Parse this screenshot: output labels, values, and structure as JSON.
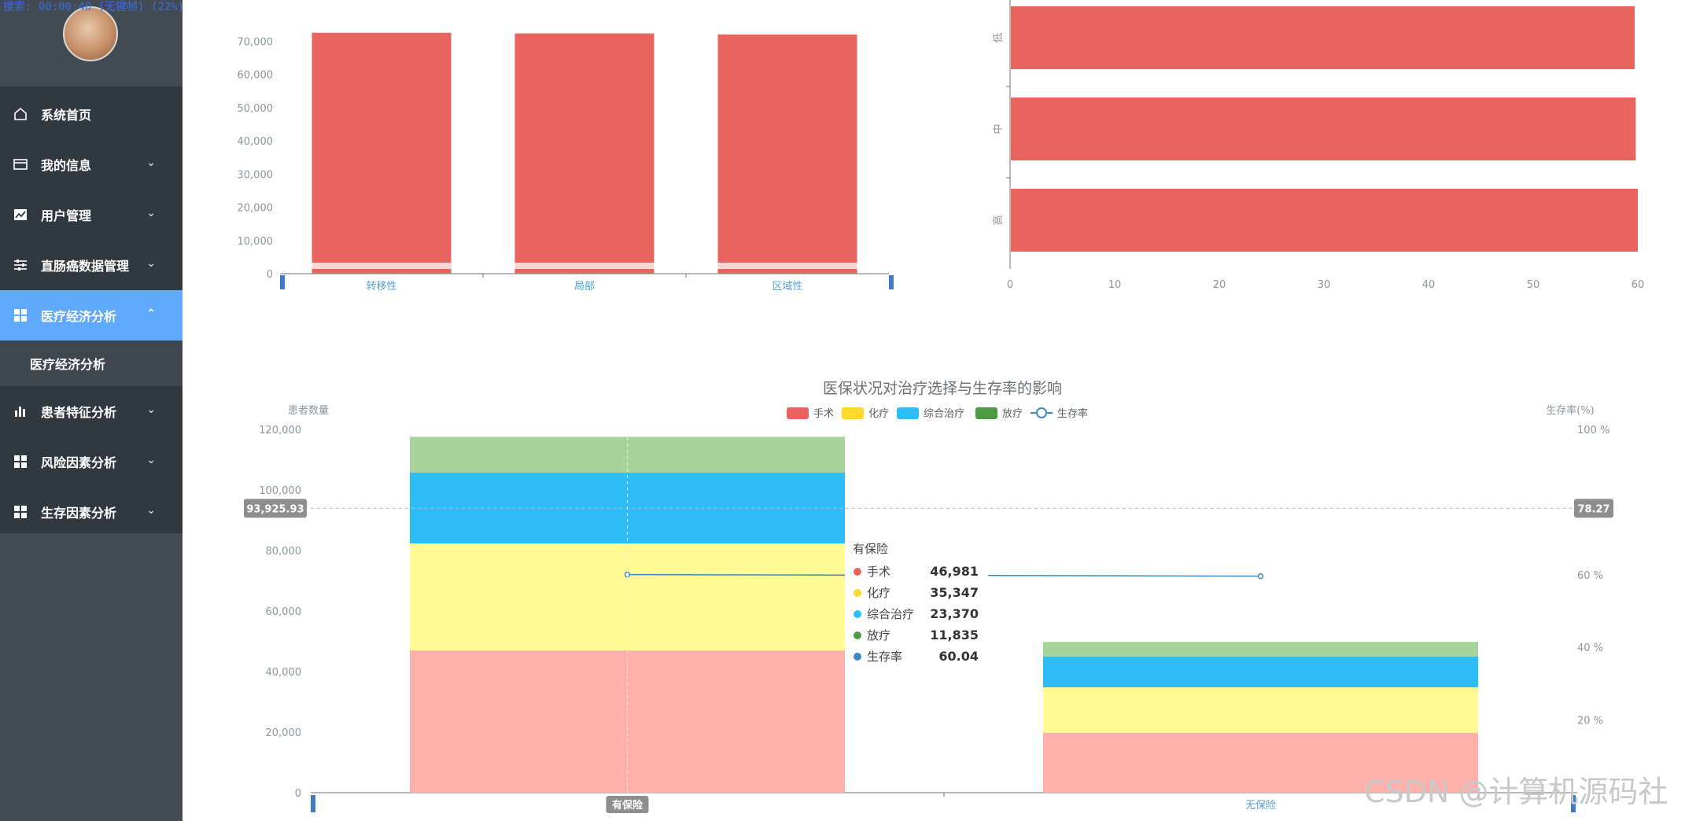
{
  "app": {
    "search_status": "搜索: 00:00:40 (无键帧) (22%)",
    "watermark": "CSDN @计算机源码社"
  },
  "sidebar": {
    "items": [
      {
        "label": "系统首页",
        "icon": "home-icon"
      },
      {
        "label": "我的信息",
        "icon": "card-icon"
      },
      {
        "label": "用户管理",
        "icon": "chart-area-icon"
      },
      {
        "label": "直肠癌数据管理",
        "icon": "sliders-icon"
      },
      {
        "label": "医疗经济分析",
        "icon": "grid-icon"
      },
      {
        "label": "患者特征分析",
        "icon": "bar-chart-icon"
      },
      {
        "label": "风险因素分析",
        "icon": "grid-icon"
      },
      {
        "label": "生存因素分析",
        "icon": "grid-icon"
      }
    ],
    "active_sub_item": "医疗经济分析",
    "colors": {
      "active": "#5fa9ff",
      "bg": "#303840"
    }
  },
  "chart_data": [
    {
      "type": "bar",
      "categories": [
        "转移性",
        "局部",
        "区域性"
      ],
      "series": [
        {
          "values": [
            72500,
            72300,
            72000
          ]
        }
      ],
      "y_ticks": [
        "0",
        "10,000",
        "20,000",
        "30,000",
        "40,000",
        "50,000",
        "60,000",
        "70,000"
      ],
      "ylim": [
        0,
        80000
      ],
      "colors": [
        "#e8645f"
      ]
    },
    {
      "type": "bar",
      "orientation": "horizontal",
      "categories": [
        "高",
        "中",
        "低"
      ],
      "series": [
        {
          "values": [
            60.0,
            59.8,
            59.7
          ]
        }
      ],
      "x_ticks": [
        "0",
        "10",
        "20",
        "30",
        "40",
        "50",
        "60"
      ],
      "xlim": [
        0,
        60
      ],
      "colors": [
        "#e8645f"
      ]
    },
    {
      "type": "bar",
      "stacked": true,
      "title": "医保状况对治疗选择与生存率的影响",
      "ylabel": "患者数量",
      "y2label": "生存率(%)",
      "categories": [
        "有保险",
        "无保险"
      ],
      "series": [
        {
          "name": "手术",
          "values": [
            46981,
            19800
          ],
          "color": "#ffb0ab"
        },
        {
          "name": "化疗",
          "values": [
            35347,
            15000
          ],
          "color": "#fffa91"
        },
        {
          "name": "综合治疗",
          "values": [
            23370,
            10200
          ],
          "color": "#2ebdf6"
        },
        {
          "name": "放疗",
          "values": [
            11835,
            4800
          ],
          "color": "#a6d49b"
        },
        {
          "name": "生存率",
          "type": "line",
          "values": [
            60.04,
            59.6
          ],
          "color": "#3d87c6",
          "axis": "right"
        }
      ],
      "legend_colors": {
        "手术": "#e8645f",
        "化疗": "#ffd92e",
        "综合治疗": "#2ebdf6",
        "放疗": "#4c9a42",
        "生存率": "#3d87c6"
      },
      "y_ticks": [
        "0",
        "20,000",
        "40,000",
        "60,000",
        "80,000",
        "100,000",
        "120,000"
      ],
      "y2_ticks": [
        "20 %",
        "40 %",
        "60 %",
        "100 %"
      ],
      "ylim": [
        0,
        120000
      ],
      "y2lim": [
        0,
        100
      ],
      "pointer": {
        "y_value": "93,925.93",
        "y2_value": "78.27",
        "x_category": "有保险"
      },
      "tooltip": {
        "title": "有保险",
        "rows": [
          {
            "name": "手术",
            "value": "46,981",
            "color": "#e8645f"
          },
          {
            "name": "化疗",
            "value": "35,347",
            "color": "#ffd92e"
          },
          {
            "name": "综合治疗",
            "value": "23,370",
            "color": "#2ebdf6"
          },
          {
            "name": "放疗",
            "value": "11,835",
            "color": "#4c9a42"
          },
          {
            "name": "生存率",
            "value": "60.04",
            "color": "#3d87c6"
          }
        ]
      }
    }
  ]
}
